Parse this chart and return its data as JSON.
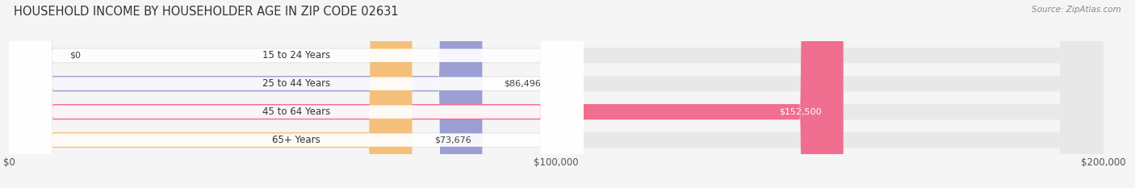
{
  "title": "HOUSEHOLD INCOME BY HOUSEHOLDER AGE IN ZIP CODE 02631",
  "source": "Source: ZipAtlas.com",
  "categories": [
    "15 to 24 Years",
    "25 to 44 Years",
    "45 to 64 Years",
    "65+ Years"
  ],
  "values": [
    0,
    86496,
    152500,
    73676
  ],
  "bar_colors": [
    "#6dcdc8",
    "#9b9fd4",
    "#f06e8f",
    "#f5c07a"
  ],
  "bg_color": "#f5f5f5",
  "bar_bg_color": "#e8e8e8",
  "xlim": [
    0,
    200000
  ],
  "xtick_labels": [
    "$0",
    "$100,000",
    "$200,000"
  ],
  "value_labels": [
    "$0",
    "$86,496",
    "$152,500",
    "$73,676"
  ],
  "bar_height": 0.55,
  "title_fontsize": 10.5,
  "label_fontsize": 8.5,
  "value_fontsize": 8,
  "source_fontsize": 7.5
}
